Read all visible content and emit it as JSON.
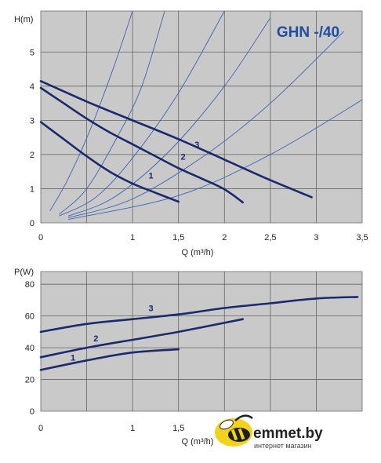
{
  "chart_data": [
    {
      "type": "line",
      "title": "GHN -/40",
      "ylabel": "H(m)",
      "xlabel": "Q (m³/h)",
      "xlim": [
        0,
        3.5
      ],
      "ylim": [
        0,
        6.2
      ],
      "x_ticks": [
        "0",
        "1",
        "1,5",
        "2",
        "2,5",
        "3",
        "3,5"
      ],
      "x_tick_values": [
        0,
        1,
        1.5,
        2,
        2.5,
        3,
        3.5
      ],
      "y_ticks": [
        "0",
        "1",
        "2",
        "3",
        "4",
        "5"
      ],
      "y_tick_values": [
        0,
        1,
        2,
        3,
        4,
        5
      ],
      "grid": true,
      "series": [
        {
          "name": "1",
          "points": [
            [
              0,
              2.95
            ],
            [
              0.25,
              2.45
            ],
            [
              0.5,
              1.95
            ],
            [
              0.75,
              1.5
            ],
            [
              1,
              1.15
            ],
            [
              1.25,
              0.88
            ],
            [
              1.5,
              0.62
            ]
          ],
          "label_at": [
            1.2,
            1.3
          ]
        },
        {
          "name": "2",
          "points": [
            [
              0,
              3.95
            ],
            [
              0.25,
              3.5
            ],
            [
              0.5,
              3.05
            ],
            [
              0.75,
              2.65
            ],
            [
              1,
              2.3
            ],
            [
              1.25,
              1.95
            ],
            [
              1.5,
              1.6
            ],
            [
              1.75,
              1.3
            ],
            [
              2,
              0.98
            ],
            [
              2.2,
              0.6
            ]
          ],
          "label_at": [
            1.55,
            1.85
          ]
        },
        {
          "name": "3",
          "points": [
            [
              0,
              4.15
            ],
            [
              0.5,
              3.55
            ],
            [
              1,
              3.0
            ],
            [
              1.5,
              2.45
            ],
            [
              2,
              1.85
            ],
            [
              2.5,
              1.25
            ],
            [
              2.95,
              0.75
            ]
          ],
          "label_at": [
            1.7,
            2.2
          ]
        }
      ],
      "system_curves": [
        {
          "points": [
            [
              0.1,
              0.35
            ],
            [
              0.3,
              1.3
            ],
            [
              0.55,
              2.8
            ],
            [
              0.8,
              4.6
            ],
            [
              1.0,
              6.2
            ]
          ]
        },
        {
          "points": [
            [
              0.2,
              0.25
            ],
            [
              0.5,
              1.0
            ],
            [
              0.85,
              2.6
            ],
            [
              1.1,
              4.0
            ],
            [
              1.35,
              6.2
            ]
          ]
        },
        {
          "points": [
            [
              0.2,
              0.2
            ],
            [
              0.6,
              0.75
            ],
            [
              1.0,
              1.9
            ],
            [
              1.5,
              3.8
            ],
            [
              2.0,
              6.2
            ]
          ]
        },
        {
          "points": [
            [
              0.3,
              0.2
            ],
            [
              0.8,
              0.75
            ],
            [
              1.4,
              2.1
            ],
            [
              2.0,
              4.0
            ],
            [
              2.5,
              6.0
            ]
          ]
        },
        {
          "points": [
            [
              0.3,
              0.15
            ],
            [
              1.0,
              0.7
            ],
            [
              1.8,
              2.0
            ],
            [
              2.5,
              3.5
            ],
            [
              3.3,
              5.6
            ]
          ]
        },
        {
          "points": [
            [
              0.3,
              0.1
            ],
            [
              1.5,
              0.8
            ],
            [
              2.5,
              2.0
            ],
            [
              3.5,
              3.6
            ]
          ]
        }
      ]
    },
    {
      "type": "line",
      "title": "",
      "ylabel": "P(W)",
      "xlabel": "Q (m³/h)",
      "xlim": [
        0,
        3.5
      ],
      "ylim": [
        0,
        88
      ],
      "x_ticks": [
        "0",
        "1",
        "1,5"
      ],
      "x_tick_values": [
        0,
        1,
        1.5
      ],
      "y_ticks": [
        "0",
        "20",
        "40",
        "60",
        "80"
      ],
      "y_tick_values": [
        0,
        20,
        40,
        60,
        80
      ],
      "grid": true,
      "series": [
        {
          "name": "1",
          "points": [
            [
              0,
              26
            ],
            [
              0.5,
              32
            ],
            [
              1,
              37
            ],
            [
              1.5,
              39
            ]
          ],
          "label_at": [
            0.35,
            32
          ]
        },
        {
          "name": "2",
          "points": [
            [
              0,
              34
            ],
            [
              0.5,
              40
            ],
            [
              1,
              45
            ],
            [
              1.5,
              50
            ],
            [
              2.2,
              58
            ]
          ],
          "label_at": [
            0.6,
            44
          ]
        },
        {
          "name": "3",
          "points": [
            [
              0,
              50
            ],
            [
              0.5,
              55
            ],
            [
              1,
              58
            ],
            [
              1.5,
              61
            ],
            [
              2,
              65
            ],
            [
              2.5,
              68
            ],
            [
              3,
              71
            ],
            [
              3.45,
              72
            ]
          ],
          "label_at": [
            1.2,
            63
          ]
        }
      ]
    }
  ],
  "watermark": {
    "brand": "emmet.by",
    "tagline": "интернет магазин",
    "colors": {
      "yellow": "#f2d21b",
      "ink": "#1e1e1e"
    }
  },
  "colors": {
    "plot_bg": "#c9c9c9",
    "pump_curve": "#1a2a6c",
    "system_curve": "#3c64b4",
    "title": "#1f4fa0"
  }
}
